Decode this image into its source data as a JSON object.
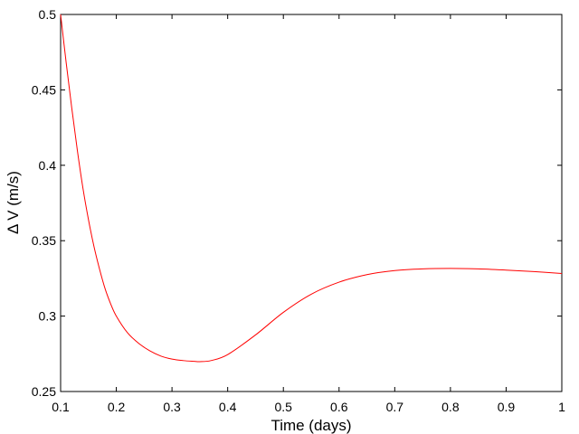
{
  "chart_data": {
    "type": "line",
    "title": "",
    "xlabel": "Time (days)",
    "ylabel": "Δ V (m/s)",
    "xlim": [
      0.1,
      1.0
    ],
    "ylim": [
      0.25,
      0.5
    ],
    "x_ticks": [
      0.1,
      0.2,
      0.3,
      0.4,
      0.5,
      0.6,
      0.7,
      0.8,
      0.9,
      1.0
    ],
    "x_tick_labels": [
      "0.1",
      "0.2",
      "0.3",
      "0.4",
      "0.5",
      "0.6",
      "0.7",
      "0.8",
      "0.9",
      "1"
    ],
    "y_ticks": [
      0.25,
      0.3,
      0.35,
      0.4,
      0.45,
      0.5
    ],
    "y_tick_labels": [
      "0.25",
      "0.3",
      "0.35",
      "0.4",
      "0.45",
      "0.5"
    ],
    "grid": false,
    "series": [
      {
        "color": "#ff0000",
        "x": [
          0.1,
          0.11,
          0.12,
          0.13,
          0.14,
          0.15,
          0.16,
          0.17,
          0.18,
          0.19,
          0.2,
          0.22,
          0.24,
          0.26,
          0.28,
          0.3,
          0.32,
          0.34,
          0.35,
          0.37,
          0.4,
          0.45,
          0.5,
          0.55,
          0.6,
          0.65,
          0.7,
          0.75,
          0.8,
          0.85,
          0.9,
          0.95,
          1.0
        ],
        "y": [
          0.5,
          0.468,
          0.438,
          0.41,
          0.385,
          0.364,
          0.346,
          0.331,
          0.318,
          0.308,
          0.3,
          0.289,
          0.282,
          0.277,
          0.2735,
          0.2715,
          0.2705,
          0.27,
          0.2698,
          0.2705,
          0.2745,
          0.2875,
          0.3025,
          0.3145,
          0.3225,
          0.3275,
          0.3302,
          0.3313,
          0.3316,
          0.3313,
          0.3305,
          0.3295,
          0.3282
        ]
      }
    ]
  }
}
